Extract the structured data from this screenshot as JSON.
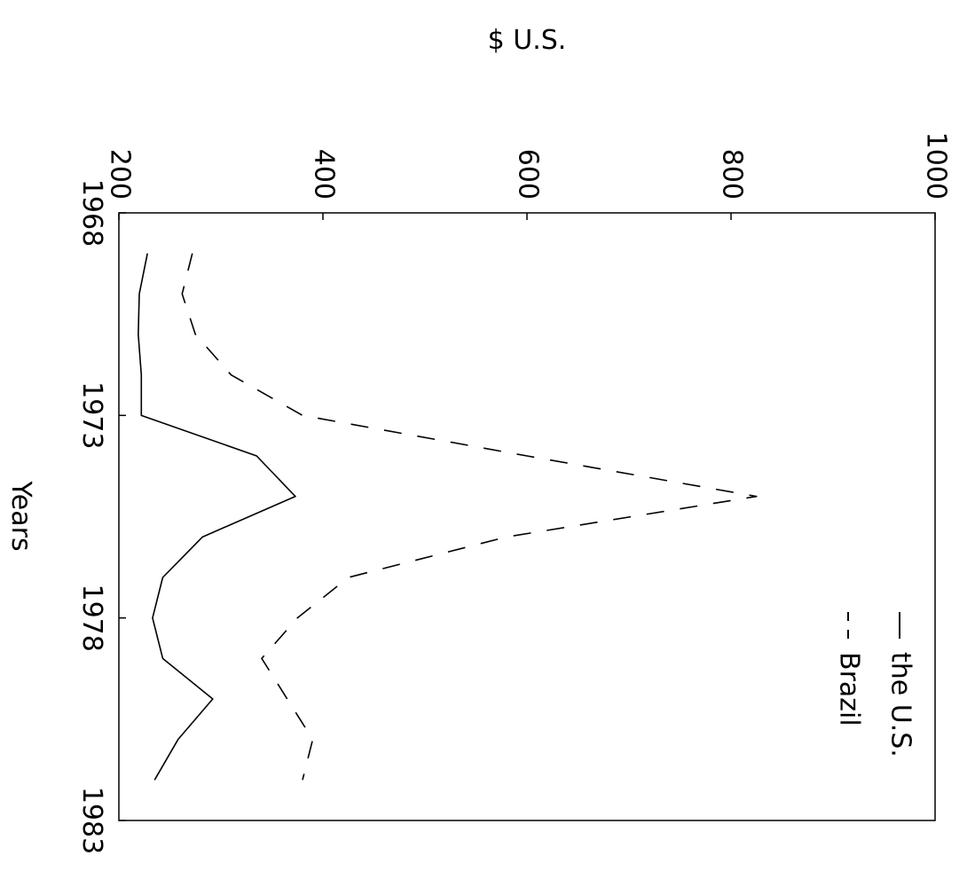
{
  "chart_data": {
    "type": "line",
    "orientation": "rotated-90-clockwise",
    "title": "",
    "xlabel": "Years",
    "ylabel": "$ U.S.",
    "x": [
      1969,
      1970,
      1971,
      1972,
      1973,
      1974,
      1975,
      1976,
      1977,
      1978,
      1979,
      1980,
      1981,
      1982
    ],
    "xlim": [
      1968,
      1983
    ],
    "ylim": [
      200,
      1000
    ],
    "x_ticks": [
      1968,
      1973,
      1978,
      1983
    ],
    "y_ticks": [
      200,
      400,
      600,
      800,
      1000
    ],
    "x_tick_labels": [
      "1968",
      "1973",
      "1978",
      "1983"
    ],
    "y_tick_labels": [
      "200",
      "400",
      "600",
      "800",
      "1000"
    ],
    "grid": false,
    "legend_position": "top-right",
    "series": [
      {
        "name": "the U.S.",
        "style": "solid",
        "values": [
          228,
          220,
          219,
          222,
          222,
          335,
          373,
          282,
          243,
          233,
          243,
          292,
          258,
          235
        ]
      },
      {
        "name": "Brazil",
        "style": "dashed",
        "values": [
          272,
          262,
          275,
          310,
          380,
          600,
          825,
          580,
          425,
          375,
          340,
          365,
          390,
          380
        ]
      }
    ]
  }
}
